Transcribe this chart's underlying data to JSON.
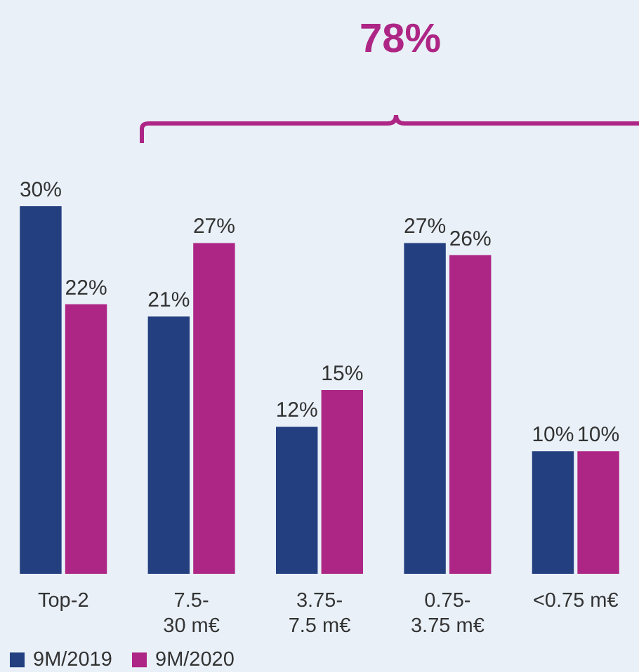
{
  "chart_data": {
    "type": "bar",
    "categories": [
      "Top-2",
      "7.5- 30 m€",
      "3.75- 7.5 m€",
      "0.75- 3.75 m€",
      "<0.75 m€"
    ],
    "series": [
      {
        "name": "9M/2019",
        "color": "#233f80",
        "values": [
          30,
          21,
          12,
          27,
          10
        ],
        "value_labels": [
          "30%",
          "21%",
          "12%",
          "27%",
          "10%"
        ]
      },
      {
        "name": "9M/2020",
        "color": "#ae2685",
        "values": [
          22,
          27,
          15,
          26,
          10
        ],
        "value_labels": [
          "22%",
          "27%",
          "15%",
          "26%",
          "10%"
        ]
      }
    ],
    "annotations": [
      "78%"
    ],
    "legend": "bottom",
    "grid": false
  }
}
